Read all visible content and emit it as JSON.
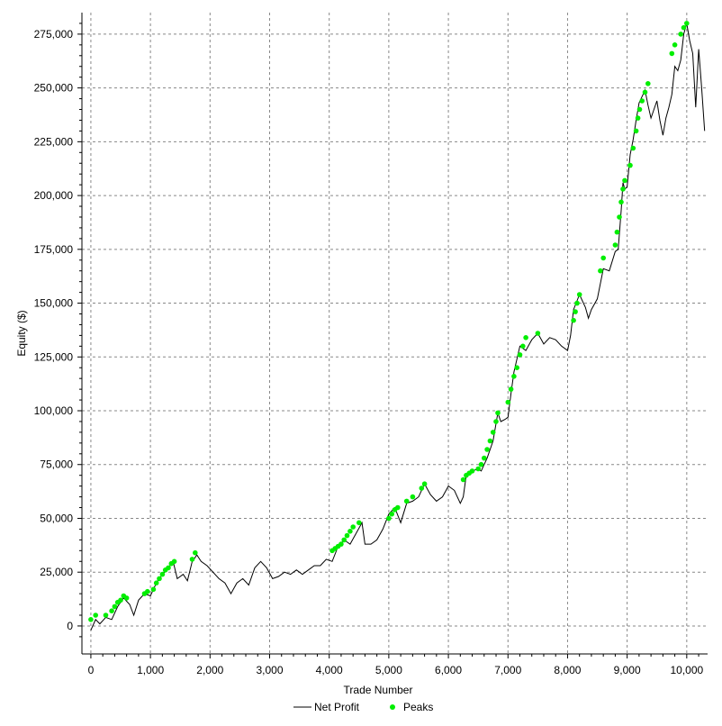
{
  "chart_data": {
    "type": "line",
    "title": "",
    "xlabel": "Trade Number",
    "ylabel": "Equity ($)",
    "xlim": [
      -150,
      10350
    ],
    "ylim": [
      -13000,
      285000
    ],
    "x_ticks": [
      0,
      1000,
      2000,
      3000,
      4000,
      5000,
      6000,
      7000,
      8000,
      9000,
      10000
    ],
    "x_tick_labels": [
      "0",
      "1,000",
      "2,000",
      "3,000",
      "4,000",
      "5,000",
      "6,000",
      "7,000",
      "8,000",
      "9,000",
      "10,000"
    ],
    "y_ticks": [
      0,
      25000,
      50000,
      75000,
      100000,
      125000,
      150000,
      175000,
      200000,
      225000,
      250000,
      275000
    ],
    "y_tick_labels": [
      "0",
      "25,000",
      "50,000",
      "75,000",
      "100,000",
      "125,000",
      "150,000",
      "175,000",
      "200,000",
      "225,000",
      "250,000",
      "275,000"
    ],
    "grid": true,
    "legend_position": "bottom-center",
    "colors": {
      "net_profit": "#000000",
      "peaks": "#00ee00",
      "grid": "#888888"
    },
    "series": [
      {
        "name": "Net Profit",
        "kind": "line",
        "x": [
          0,
          80,
          150,
          250,
          350,
          450,
          550,
          650,
          720,
          800,
          900,
          1000,
          1100,
          1200,
          1300,
          1380,
          1450,
          1550,
          1620,
          1700,
          1780,
          1850,
          1950,
          2050,
          2150,
          2250,
          2350,
          2450,
          2550,
          2650,
          2750,
          2850,
          2950,
          3050,
          3150,
          3250,
          3350,
          3450,
          3550,
          3650,
          3750,
          3850,
          3950,
          4050,
          4150,
          4250,
          4350,
          4450,
          4550,
          4600,
          4700,
          4800,
          4900,
          5000,
          5100,
          5200,
          5300,
          5400,
          5500,
          5600,
          5700,
          5800,
          5900,
          6000,
          6100,
          6200,
          6250,
          6300,
          6400,
          6500,
          6550,
          6650,
          6750,
          6830,
          6880,
          6950,
          7000,
          7050,
          7100,
          7200,
          7300,
          7400,
          7500,
          7600,
          7700,
          7800,
          7900,
          8000,
          8050,
          8100,
          8200,
          8300,
          8350,
          8400,
          8500,
          8600,
          8700,
          8800,
          8850,
          8900,
          8930,
          8960,
          9000,
          9050,
          9100,
          9150,
          9200,
          9250,
          9300,
          9350,
          9400,
          9450,
          9500,
          9550,
          9600,
          9650,
          9700,
          9750,
          9800,
          9850,
          9900,
          9950,
          10000,
          10050,
          10100,
          10150,
          10200,
          10250,
          10300
        ],
        "y": [
          -2000,
          3000,
          1000,
          4000,
          3000,
          9000,
          13000,
          10000,
          5000,
          12000,
          15000,
          14000,
          20000,
          24000,
          27000,
          30000,
          22000,
          24000,
          21000,
          30000,
          33000,
          30000,
          28000,
          25000,
          22000,
          20000,
          15000,
          20000,
          22000,
          19000,
          27000,
          30000,
          27000,
          22000,
          23000,
          25000,
          24000,
          26000,
          24000,
          26000,
          28000,
          28000,
          31000,
          30000,
          37000,
          40000,
          38000,
          43000,
          48000,
          38000,
          38000,
          40000,
          45000,
          52000,
          55000,
          48000,
          57000,
          58000,
          60000,
          66000,
          61000,
          58000,
          60000,
          65000,
          63000,
          57000,
          60000,
          70000,
          72000,
          73000,
          72000,
          78000,
          86000,
          99000,
          95000,
          96000,
          97000,
          108000,
          118000,
          130000,
          128000,
          133000,
          136000,
          131000,
          134000,
          133000,
          130000,
          128000,
          135000,
          147000,
          154000,
          148000,
          143000,
          147000,
          152000,
          166000,
          165000,
          174000,
          175000,
          193000,
          206000,
          203000,
          204000,
          219000,
          226000,
          235000,
          243000,
          246000,
          249000,
          242000,
          236000,
          240000,
          244000,
          235000,
          228000,
          236000,
          241000,
          247000,
          260000,
          258000,
          263000,
          275000,
          280000,
          272000,
          266000,
          241000,
          268000,
          250000,
          230000
        ]
      },
      {
        "name": "Peaks",
        "kind": "scatter",
        "x": [
          0,
          80,
          250,
          350,
          400,
          450,
          500,
          550,
          600,
          900,
          950,
          1050,
          1100,
          1150,
          1200,
          1250,
          1300,
          1350,
          1400,
          1700,
          1750,
          4050,
          4100,
          4150,
          4200,
          4250,
          4300,
          4350,
          4400,
          4500,
          5000,
          5050,
          5100,
          5150,
          5300,
          5400,
          5550,
          5600,
          6250,
          6300,
          6350,
          6400,
          6500,
          6550,
          6600,
          6650,
          6700,
          6750,
          6800,
          6830,
          7000,
          7050,
          7100,
          7150,
          7200,
          7250,
          7300,
          7500,
          8100,
          8130,
          8160,
          8200,
          8550,
          8600,
          8800,
          8830,
          8870,
          8900,
          8930,
          8960,
          9050,
          9100,
          9150,
          9180,
          9210,
          9250,
          9300,
          9350,
          9750,
          9800,
          9900,
          9950,
          10000
        ],
        "y": [
          3000,
          5000,
          5000,
          7000,
          9000,
          11000,
          12000,
          14000,
          13000,
          15000,
          16000,
          17000,
          20000,
          22000,
          24000,
          26000,
          27000,
          29000,
          30000,
          31000,
          34000,
          35000,
          36000,
          37000,
          38000,
          40000,
          42000,
          44000,
          46000,
          48000,
          50000,
          52000,
          54000,
          55000,
          58000,
          60000,
          64000,
          66000,
          68000,
          70000,
          71000,
          72000,
          73000,
          75000,
          78000,
          82000,
          86000,
          90000,
          95000,
          99000,
          104000,
          110000,
          116000,
          120000,
          126000,
          130000,
          134000,
          136000,
          142000,
          146000,
          150000,
          154000,
          165000,
          171000,
          177000,
          183000,
          190000,
          197000,
          203000,
          207000,
          214000,
          222000,
          230000,
          236000,
          240000,
          244000,
          248000,
          252000,
          266000,
          270000,
          275000,
          278000,
          280000
        ]
      }
    ]
  }
}
